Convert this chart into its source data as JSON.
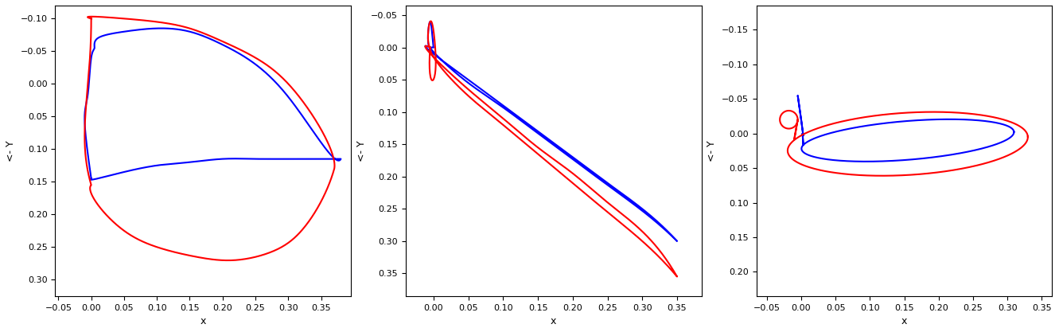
{
  "blue_color": "#0000FF",
  "red_color": "#FF0000",
  "line_width": 1.5,
  "background_color": "#FFFFFF",
  "plots": [
    {
      "xlim": [
        -0.055,
        0.395
      ],
      "ylim": [
        0.325,
        -0.12
      ],
      "xtick_step": 0.05,
      "ytick_step": 0.05,
      "xlabel": "x",
      "ylabel": "<- Y"
    },
    {
      "xlim": [
        -0.04,
        0.385
      ],
      "ylim": [
        0.385,
        -0.065
      ],
      "xtick_step": 0.05,
      "ytick_step": 0.05,
      "xlabel": "x",
      "ylabel": "<- Y"
    },
    {
      "xlim": [
        -0.065,
        0.365
      ],
      "ylim": [
        0.235,
        -0.185
      ],
      "xtick_step": 0.05,
      "ytick_step": 0.05,
      "xlabel": "x",
      "ylabel": "<- Y"
    }
  ]
}
